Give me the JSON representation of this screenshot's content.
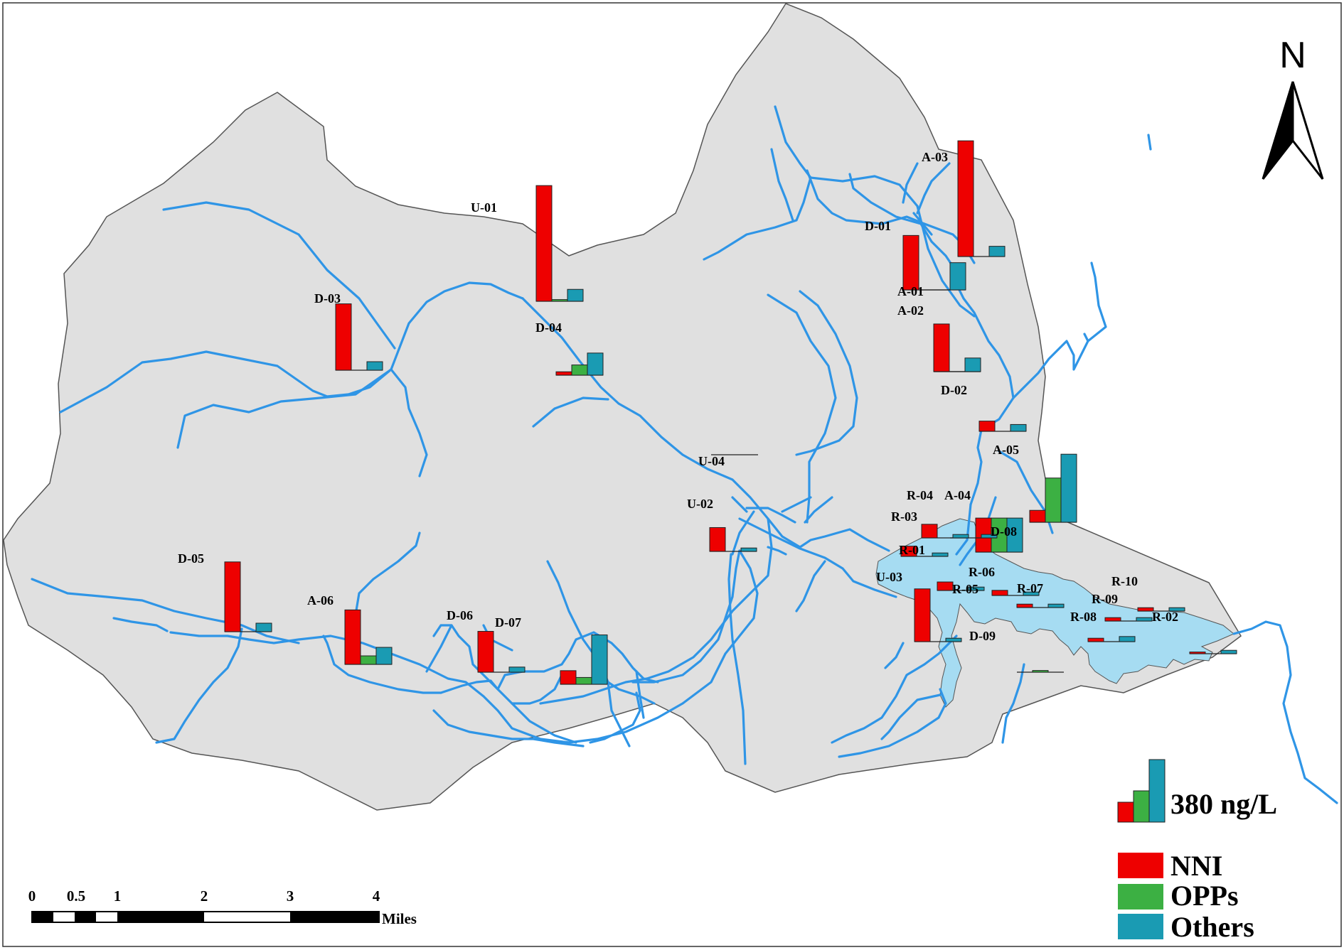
{
  "north_arrow": {
    "label": "N"
  },
  "legend": {
    "reference_label": "380 ng/L",
    "reference_value": 380,
    "items": [
      {
        "label": "NNI",
        "color": "#ee0000"
      },
      {
        "label": "OPPs",
        "color": "#3cb043"
      },
      {
        "label": "Others",
        "color": "#1a9bb3"
      }
    ]
  },
  "scale_bar": {
    "ticks": [
      "0",
      "0.5",
      "1",
      "2",
      "3",
      "4"
    ],
    "unit": "Miles"
  },
  "colors": {
    "basin": "#e0e0e0",
    "river": "#2f95e6",
    "reservoir": "#a6dcf2"
  },
  "chart_data": {
    "type": "bar",
    "series_names": [
      "NNI",
      "OPPs",
      "Others"
    ],
    "units": "ng/L",
    "sites": [
      {
        "label": "U-01",
        "values": [
          340,
          5,
          35
        ]
      },
      {
        "label": "D-03",
        "values": [
          195,
          0,
          25
        ]
      },
      {
        "label": "D-04",
        "values": [
          10,
          30,
          65
        ]
      },
      {
        "label": "A-03",
        "values": [
          340,
          0,
          30
        ]
      },
      {
        "label": "D-01",
        "values": [
          160,
          0,
          0
        ]
      },
      {
        "label": "A-01",
        "values": [
          0,
          0,
          80
        ]
      },
      {
        "label": "A-02",
        "values": [
          140,
          0,
          30
        ]
      },
      {
        "label": "D-02",
        "values": [
          0,
          0,
          40
        ]
      },
      {
        "label": "A-05",
        "values": [
          30,
          0,
          20
        ]
      },
      {
        "label": "U-04",
        "values": [
          0,
          0,
          0
        ]
      },
      {
        "label": "A-04",
        "values": [
          35,
          130,
          200
        ]
      },
      {
        "label": "D-08",
        "values": [
          100,
          100,
          100
        ]
      },
      {
        "label": "R-04",
        "values": [
          0,
          0,
          10
        ]
      },
      {
        "label": "R-03",
        "values": [
          40,
          0,
          10
        ]
      },
      {
        "label": "R-01",
        "values": [
          30,
          0,
          10
        ]
      },
      {
        "label": "U-02",
        "values": [
          70,
          0,
          10
        ]
      },
      {
        "label": "D-05",
        "values": [
          205,
          0,
          25
        ]
      },
      {
        "label": "A-06",
        "values": [
          160,
          25,
          50
        ]
      },
      {
        "label": "D-06",
        "values": [
          120,
          0,
          15
        ]
      },
      {
        "label": "D-07",
        "values": [
          40,
          20,
          145
        ]
      },
      {
        "label": "U-03",
        "values": [
          155,
          0,
          10
        ]
      },
      {
        "label": "R-05",
        "values": [
          25,
          0,
          10
        ]
      },
      {
        "label": "R-06",
        "values": [
          15,
          0,
          10
        ]
      },
      {
        "label": "R-07",
        "values": [
          10,
          0,
          10
        ]
      },
      {
        "label": "D-09",
        "values": [
          0,
          5,
          0
        ]
      },
      {
        "label": "R-08",
        "values": [
          10,
          0,
          15
        ]
      },
      {
        "label": "R-09",
        "values": [
          10,
          0,
          10
        ]
      },
      {
        "label": "R-10",
        "values": [
          10,
          0,
          10
        ]
      },
      {
        "label": "R-02",
        "values": [
          5,
          0,
          10
        ]
      }
    ]
  }
}
